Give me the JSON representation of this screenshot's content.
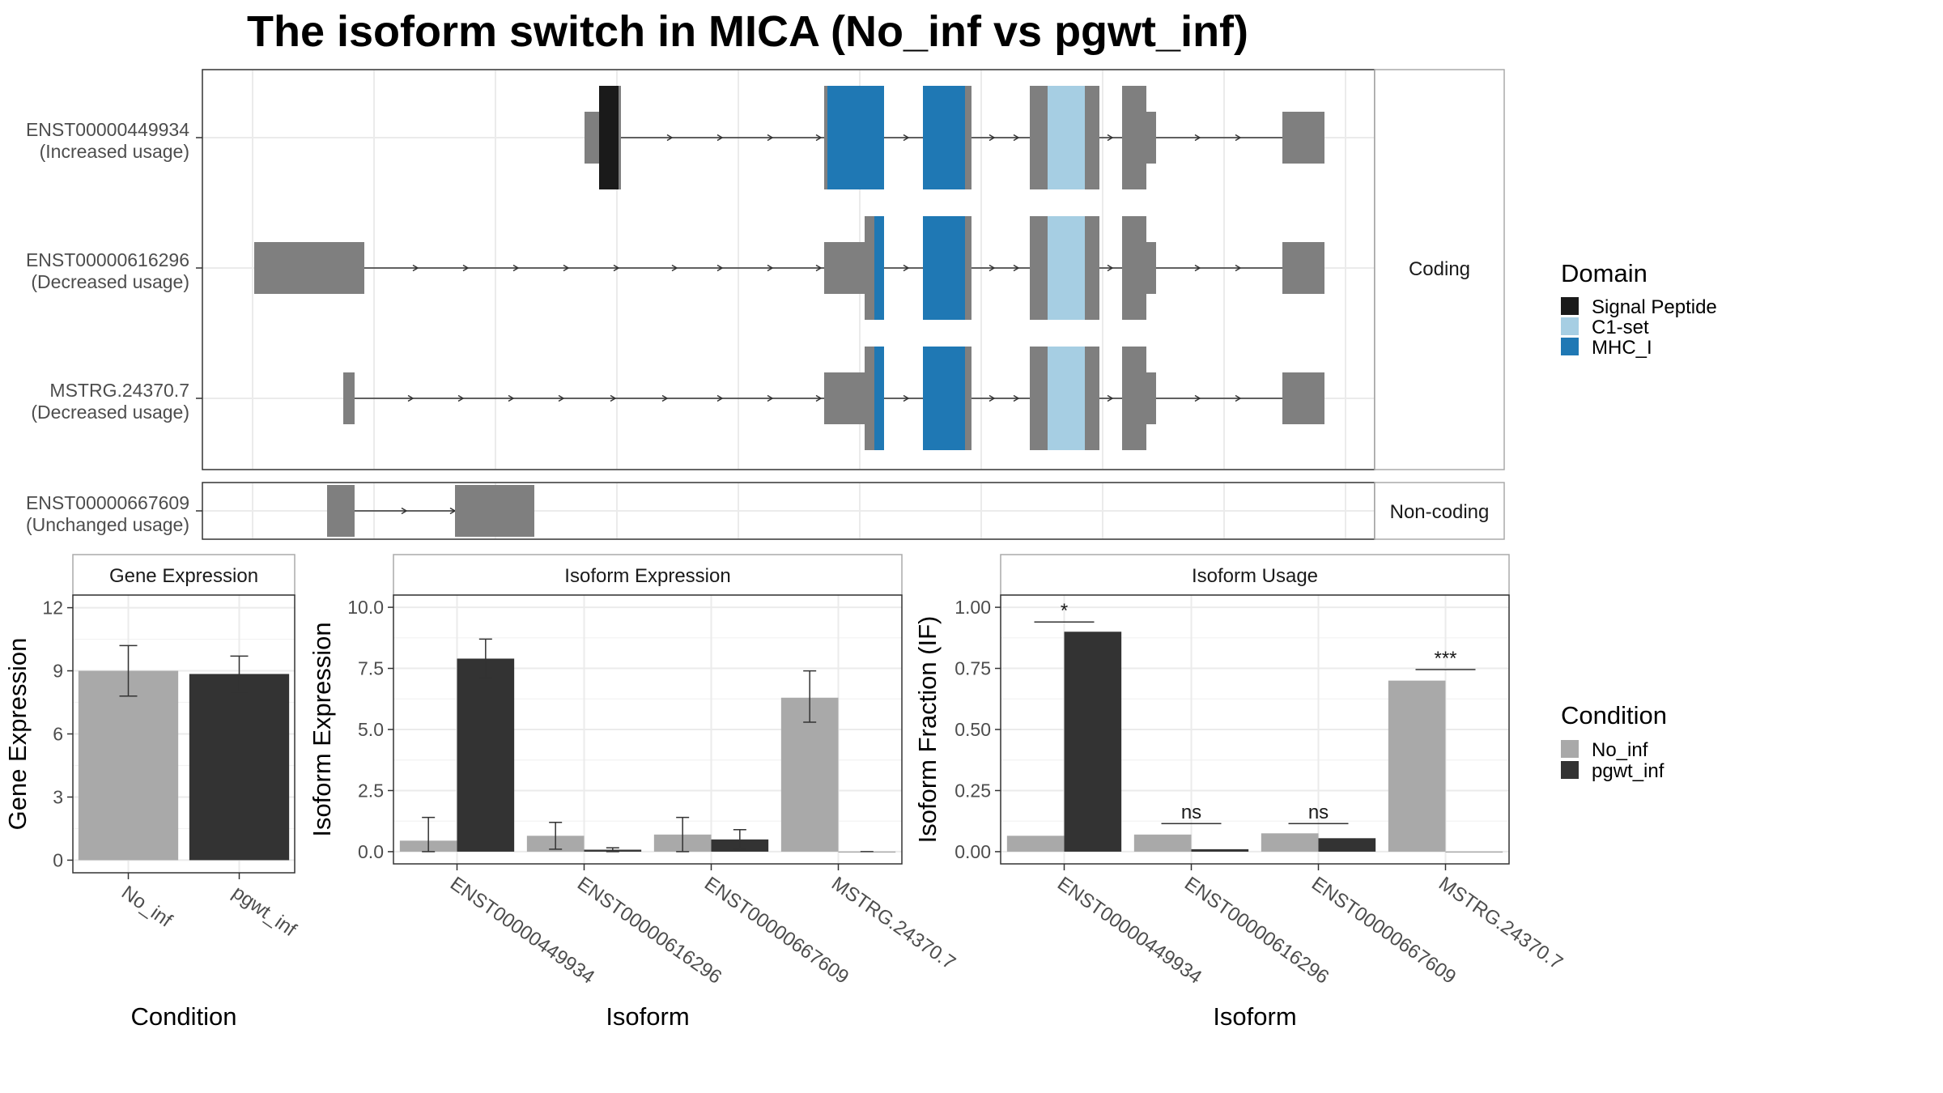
{
  "title": "The isoform switch in MICA (No_inf vs pgwt_inf)",
  "colors": {
    "signal_peptide": "#1a1a1a",
    "c1_set": "#a6cee3",
    "mhc_i": "#1f78b4",
    "exon": "#7f7f7f",
    "no_inf": "#a9a9a9",
    "pgwt_inf": "#333333"
  },
  "structure": {
    "facet_coding": "Coding",
    "facet_noncoding": "Non-coding",
    "transcripts": [
      {
        "id": "ENST00000449934",
        "usage": "(Increased usage)"
      },
      {
        "id": "ENST00000616296",
        "usage": "(Decreased usage)"
      },
      {
        "id": "MSTRG.24370.7",
        "usage": "(Decreased usage)"
      },
      {
        "id": "ENST00000667609",
        "usage": "(Unchanged usage)"
      }
    ]
  },
  "legend_domain": {
    "title": "Domain",
    "items": [
      "Signal Peptide",
      "C1-set",
      "MHC_I"
    ]
  },
  "legend_condition": {
    "title": "Condition",
    "items": [
      "No_inf",
      "pgwt_inf"
    ]
  },
  "chart_data": [
    {
      "type": "bar",
      "title": "Gene Expression",
      "xlabel": "Condition",
      "ylabel": "Gene Expression",
      "categories": [
        "No_inf",
        "pgwt_inf"
      ],
      "values": [
        9.0,
        8.85
      ],
      "errors": [
        [
          7.8,
          10.2
        ],
        [
          8.0,
          9.7
        ]
      ],
      "ylim": [
        -0.6,
        12.6
      ],
      "yticks": [
        0,
        3,
        6,
        9,
        12
      ],
      "ytick_labels": [
        "0",
        "3",
        "6",
        "9",
        "12"
      ]
    },
    {
      "type": "bar",
      "title": "Isoform Expression",
      "xlabel": "Isoform",
      "ylabel": "Isoform Expression",
      "categories": [
        "ENST00000449934",
        "ENST00000616296",
        "ENST00000667609",
        "MSTRG.24370.7"
      ],
      "series": [
        {
          "name": "No_inf",
          "values": [
            0.45,
            0.65,
            0.7,
            6.3
          ],
          "errors": [
            [
              0.0,
              1.4
            ],
            [
              0.1,
              1.2
            ],
            [
              0.0,
              1.4
            ],
            [
              5.3,
              7.4
            ]
          ]
        },
        {
          "name": "pgwt_inf",
          "values": [
            7.9,
            0.08,
            0.5,
            0.0
          ],
          "errors": [
            [
              7.1,
              8.7
            ],
            [
              0.0,
              0.16
            ],
            [
              0.1,
              0.9
            ],
            [
              0.0,
              0.0
            ]
          ]
        }
      ],
      "ylim": [
        -0.5,
        10.5
      ],
      "yticks": [
        0,
        2.5,
        5,
        7.5,
        10
      ],
      "ytick_labels": [
        "0.0",
        "2.5",
        "5.0",
        "7.5",
        "10.0"
      ]
    },
    {
      "type": "bar",
      "title": "Isoform Usage",
      "xlabel": "Isoform",
      "ylabel": "Isoform Fraction (IF)",
      "categories": [
        "ENST00000449934",
        "ENST00000616296",
        "ENST00000667609",
        "MSTRG.24370.7"
      ],
      "series": [
        {
          "name": "No_inf",
          "values": [
            0.065,
            0.07,
            0.075,
            0.7
          ]
        },
        {
          "name": "pgwt_inf",
          "values": [
            0.9,
            0.01,
            0.055,
            0.0
          ]
        }
      ],
      "significance": [
        "*",
        "ns",
        "ns",
        "***"
      ],
      "significance_y": [
        0.94,
        0.115,
        0.115,
        0.745
      ],
      "ylim": [
        -0.05,
        1.05
      ],
      "yticks": [
        0,
        0.25,
        0.5,
        0.75,
        1.0
      ],
      "ytick_labels": [
        "0.00",
        "0.25",
        "0.50",
        "0.75",
        "1.00"
      ]
    }
  ]
}
